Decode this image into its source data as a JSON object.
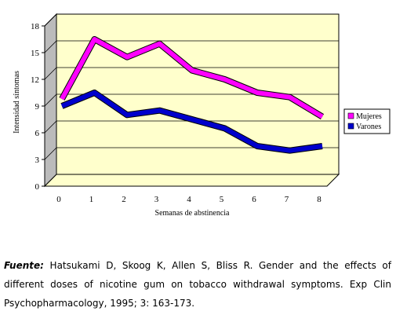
{
  "chart_data": {
    "type": "line",
    "x": [
      0,
      1,
      2,
      3,
      4,
      5,
      6,
      7,
      8
    ],
    "xlabel": "Semanas de abstinencia",
    "ylabel": "Intensidad síntomas",
    "ylim": [
      0,
      18
    ],
    "yticks": [
      0,
      3,
      6,
      9,
      12,
      15,
      18
    ],
    "grid": true,
    "legend_position": "right",
    "plot_background": "#ffffcc",
    "series": [
      {
        "name": "Mujeres",
        "color": "#ff00ff",
        "values": [
          9.8,
          16.5,
          14.5,
          16.0,
          13.0,
          12.0,
          10.5,
          10.0,
          7.8
        ]
      },
      {
        "name": "Varones",
        "color": "#0000cc",
        "values": [
          9.0,
          10.5,
          8.0,
          8.5,
          7.5,
          6.5,
          4.5,
          4.0,
          4.5
        ]
      }
    ]
  },
  "caption": {
    "label": "Fuente:",
    "text": " Hatsukami D, Skoog K, Allen S, Bliss R. Gender and the effects of different doses of nicotine gum on tobacco withdrawal symptoms. Exp Clin Psychopharmacology, 1995; 3: 163-173."
  }
}
